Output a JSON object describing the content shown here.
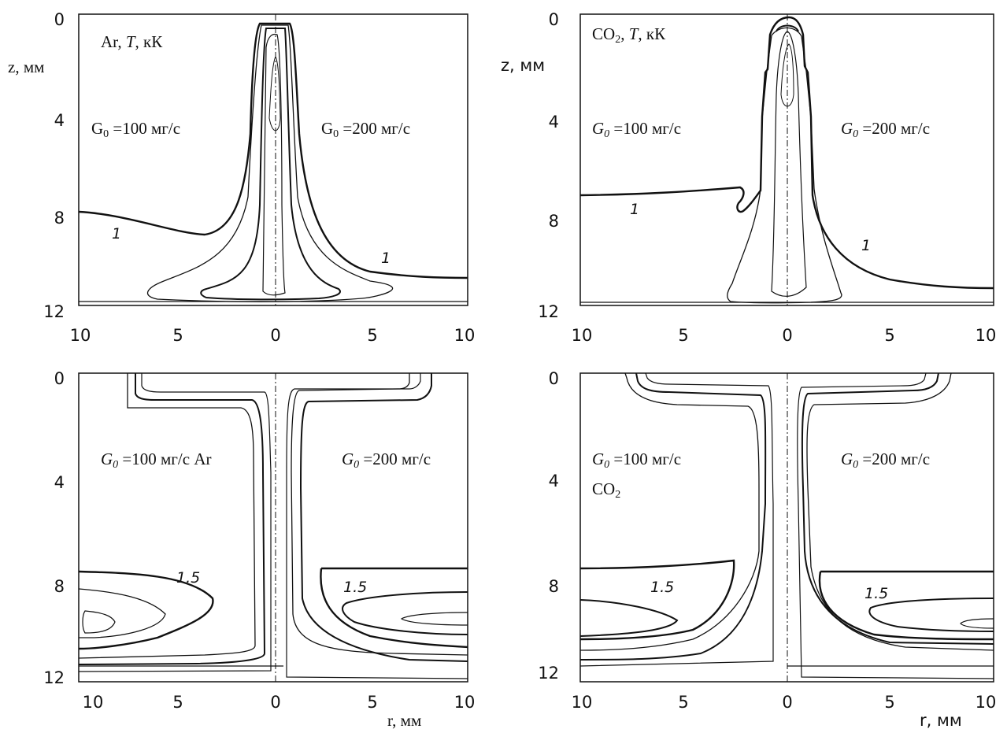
{
  "chart_data": [
    {
      "type": "contour",
      "xlabel": "",
      "ylabel": "z, мм",
      "annotations": {
        "title_prefix": "Ar,  ",
        "title_T": "T",
        "title_suffix": ", кК",
        "left_label_G": "G",
        "left_label_sub": "0",
        "left_label_rest": " =100 мг/с",
        "right_label_G": "G",
        "right_label_sub": "0",
        "right_label_rest": " =200 мг/с",
        "level_left": "1",
        "level_right": "1"
      },
      "x_ticks": [
        "10",
        "5",
        "0",
        "5",
        "10"
      ],
      "y_ticks": [
        "0",
        "4",
        "8",
        "12"
      ],
      "xlim": [
        -10,
        10
      ],
      "ylim": [
        0,
        12
      ],
      "contour_level_labels": [
        1
      ]
    },
    {
      "type": "contour",
      "xlabel": "",
      "ylabel": "z, мм",
      "annotations": {
        "title_prefix": "CO",
        "title_sub": "2",
        "title_mid": ",  ",
        "title_T": "T",
        "title_suffix": ", кК",
        "left_label_G": "G",
        "left_label_sub": "0",
        "left_label_rest": " =100 мг/с",
        "right_label_G": "G",
        "right_label_sub": "0",
        "right_label_rest": " =200 мг/с",
        "level_left": "1",
        "level_right": "1"
      },
      "x_ticks": [
        "10",
        "5",
        "0",
        "5",
        "10"
      ],
      "y_ticks": [
        "0",
        "4",
        "8",
        "12"
      ],
      "xlim": [
        -10,
        10
      ],
      "ylim": [
        0,
        12
      ],
      "contour_level_labels": [
        1
      ]
    },
    {
      "type": "contour",
      "xlabel": "r, мм",
      "ylabel": "",
      "annotations": {
        "left_label_G": "G",
        "left_label_sub": "0",
        "left_label_rest": " =100 мг/с Ar",
        "right_label_G": "G",
        "right_label_sub": "0",
        "right_label_rest": " =200 мг/с",
        "level_left": "1.5",
        "level_right": "1.5"
      },
      "x_ticks": [
        "10",
        "5",
        "0",
        "5",
        "10"
      ],
      "y_ticks": [
        "0",
        "4",
        "8",
        "12"
      ],
      "xlim": [
        -10,
        10
      ],
      "ylim": [
        0,
        12
      ],
      "contour_level_labels": [
        1.5
      ]
    },
    {
      "type": "contour",
      "xlabel": "r, мм",
      "ylabel": "",
      "annotations": {
        "left_label_G": "G",
        "left_label_sub": "0",
        "left_label_rest": " =100 мг/с",
        "gas_prefix": "CO",
        "gas_sub": "2",
        "right_label_G": "G",
        "right_label_sub": "0",
        "right_label_rest": " =200 мг/с",
        "level_left": "1.5",
        "level_right": "1.5"
      },
      "x_ticks": [
        "10",
        "5",
        "0",
        "5",
        "10"
      ],
      "y_ticks": [
        "0",
        "4",
        "8",
        "12"
      ],
      "xlim": [
        -10,
        10
      ],
      "ylim": [
        0,
        12
      ],
      "contour_level_labels": [
        1.5
      ]
    }
  ],
  "colors": {
    "line": "#111111",
    "background": "#ffffff"
  }
}
